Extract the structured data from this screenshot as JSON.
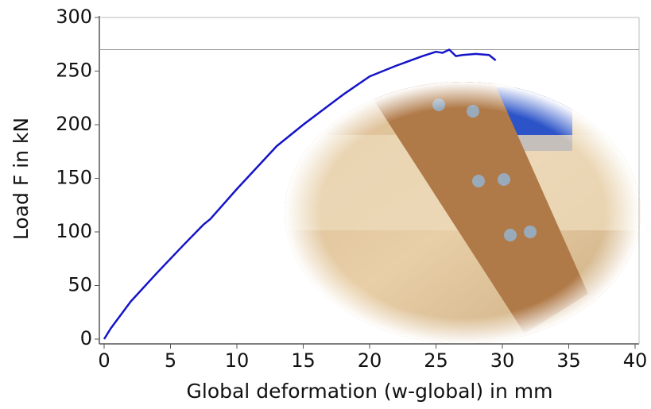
{
  "chart_data": {
    "type": "line",
    "xlabel": "Global deformation (w-global) in mm",
    "ylabel": "Load F in kN",
    "x": [
      0,
      0.5,
      2,
      4,
      6,
      7.5,
      8,
      10,
      13,
      15,
      18,
      20,
      22,
      24,
      25,
      25.5,
      26,
      26.5,
      27,
      28,
      29,
      29.5
    ],
    "series": [
      {
        "color": "#1414c8",
        "values": [
          0,
          10,
          35,
          62,
          88,
          107,
          112,
          140,
          180,
          200,
          228,
          245,
          255,
          264,
          268,
          267,
          270,
          264,
          265,
          266,
          265,
          260
        ]
      }
    ],
    "hline": 270,
    "xlim": [
      0,
      40
    ],
    "xticks": [
      0,
      5,
      10,
      15,
      20,
      25,
      30,
      35,
      40
    ],
    "ylim": [
      0,
      300
    ],
    "yticks": [
      0,
      50,
      100,
      150,
      200,
      250,
      300
    ]
  }
}
